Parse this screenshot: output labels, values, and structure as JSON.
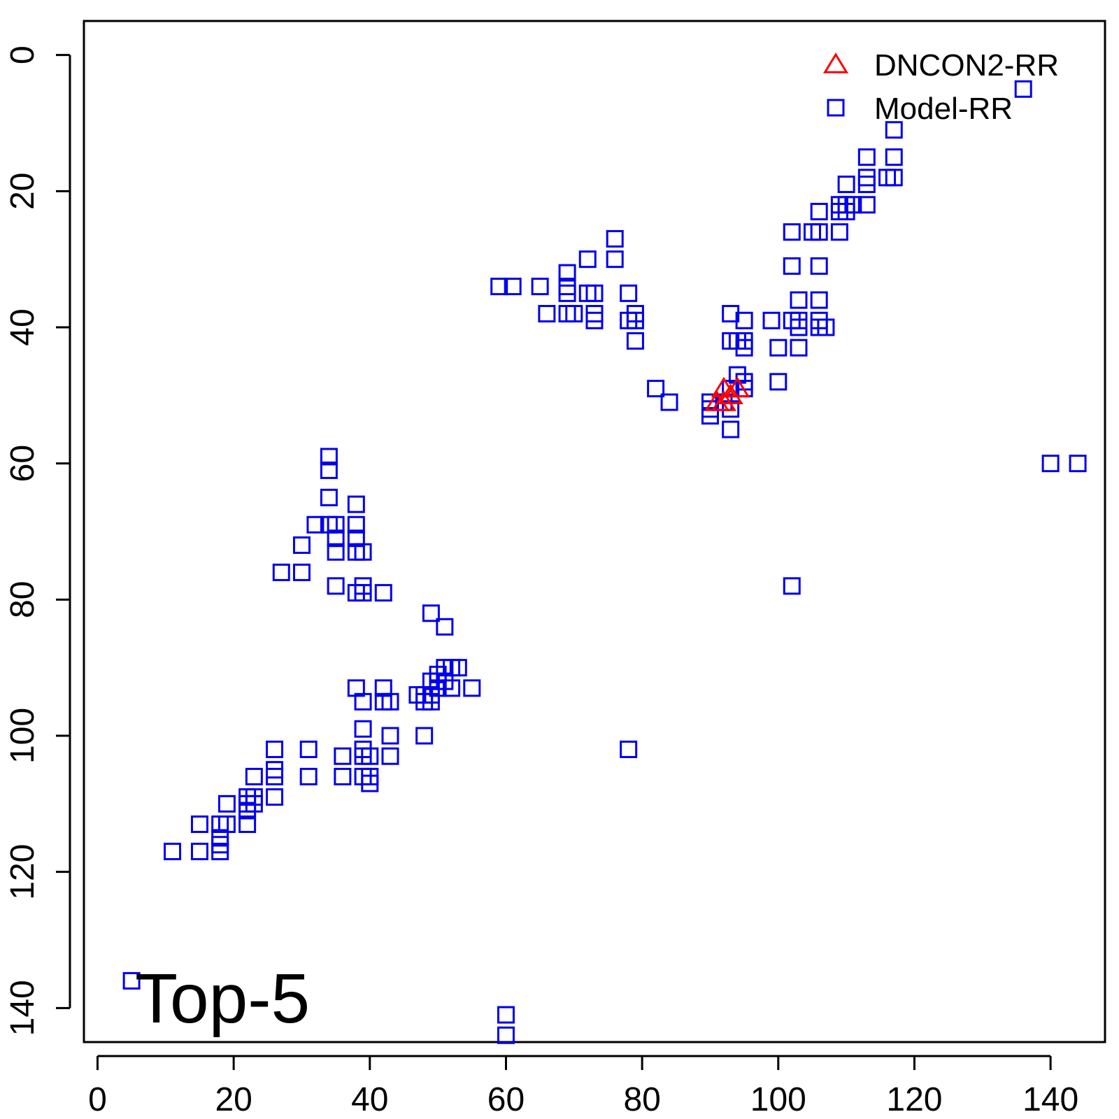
{
  "chart_data": {
    "type": "scatter",
    "title": "",
    "xlabel": "",
    "ylabel": "",
    "xlim": [
      -2,
      148
    ],
    "ylim": [
      145,
      -5
    ],
    "y_axis_reversed": true,
    "x_ticks": [
      0,
      20,
      40,
      60,
      80,
      100,
      120,
      140
    ],
    "y_ticks": [
      0,
      20,
      40,
      60,
      80,
      100,
      120,
      140
    ],
    "grid": false,
    "legend_position": "top-right",
    "annotation": "Top-5",
    "series": [
      {
        "name": "DNCON2-RR",
        "marker": "triangle",
        "color": "#ff0000",
        "points": [
          [
            92,
            49
          ],
          [
            94,
            49
          ],
          [
            93,
            50
          ],
          [
            92,
            51
          ],
          [
            91,
            51
          ]
        ]
      },
      {
        "name": "Model-RR",
        "marker": "square",
        "color": "#0000ee",
        "points": [
          [
            136,
            5
          ],
          [
            117,
            11
          ],
          [
            113,
            15
          ],
          [
            117,
            15
          ],
          [
            113,
            18
          ],
          [
            116,
            18
          ],
          [
            117,
            18
          ],
          [
            110,
            19
          ],
          [
            113,
            19
          ],
          [
            109,
            22
          ],
          [
            110,
            22
          ],
          [
            111,
            22
          ],
          [
            113,
            22
          ],
          [
            109,
            23
          ],
          [
            110,
            23
          ],
          [
            106,
            23
          ],
          [
            102,
            26
          ],
          [
            105,
            26
          ],
          [
            106,
            26
          ],
          [
            109,
            26
          ],
          [
            76,
            27
          ],
          [
            72,
            30
          ],
          [
            76,
            30
          ],
          [
            102,
            31
          ],
          [
            106,
            31
          ],
          [
            69,
            32
          ],
          [
            69,
            34
          ],
          [
            59,
            34
          ],
          [
            61,
            34
          ],
          [
            65,
            34
          ],
          [
            69,
            35
          ],
          [
            72,
            35
          ],
          [
            73,
            35
          ],
          [
            78,
            35
          ],
          [
            103,
            36
          ],
          [
            106,
            36
          ],
          [
            66,
            38
          ],
          [
            69,
            38
          ],
          [
            70,
            38
          ],
          [
            73,
            38
          ],
          [
            79,
            38
          ],
          [
            93,
            38
          ],
          [
            73,
            39
          ],
          [
            78,
            39
          ],
          [
            79,
            39
          ],
          [
            95,
            39
          ],
          [
            99,
            39
          ],
          [
            102,
            39
          ],
          [
            103,
            39
          ],
          [
            106,
            39
          ],
          [
            103,
            40
          ],
          [
            106,
            40
          ],
          [
            107,
            40
          ],
          [
            79,
            42
          ],
          [
            93,
            42
          ],
          [
            94,
            42
          ],
          [
            95,
            42
          ],
          [
            95,
            43
          ],
          [
            100,
            43
          ],
          [
            103,
            43
          ],
          [
            94,
            47
          ],
          [
            100,
            48
          ],
          [
            95,
            48
          ],
          [
            82,
            49
          ],
          [
            95,
            49
          ],
          [
            93,
            49
          ],
          [
            92,
            51
          ],
          [
            84,
            51
          ],
          [
            90,
            51
          ],
          [
            90,
            52
          ],
          [
            93,
            52
          ],
          [
            90,
            53
          ],
          [
            93,
            55
          ],
          [
            34,
            59
          ],
          [
            34,
            61
          ],
          [
            140,
            60
          ],
          [
            144,
            60
          ],
          [
            34,
            65
          ],
          [
            38,
            66
          ],
          [
            32,
            69
          ],
          [
            34,
            69
          ],
          [
            35,
            69
          ],
          [
            38,
            69
          ],
          [
            35,
            71
          ],
          [
            38,
            71
          ],
          [
            30,
            72
          ],
          [
            35,
            73
          ],
          [
            38,
            73
          ],
          [
            39,
            73
          ],
          [
            27,
            76
          ],
          [
            30,
            76
          ],
          [
            35,
            78
          ],
          [
            39,
            78
          ],
          [
            102,
            78
          ],
          [
            38,
            79
          ],
          [
            39,
            79
          ],
          [
            42,
            79
          ],
          [
            49,
            82
          ],
          [
            51,
            84
          ],
          [
            51,
            90
          ],
          [
            52,
            90
          ],
          [
            53,
            90
          ],
          [
            50,
            91
          ],
          [
            50,
            92
          ],
          [
            51,
            92
          ],
          [
            49,
            92
          ],
          [
            38,
            93
          ],
          [
            42,
            93
          ],
          [
            50,
            93
          ],
          [
            52,
            93
          ],
          [
            55,
            93
          ],
          [
            47,
            94
          ],
          [
            48,
            94
          ],
          [
            49,
            94
          ],
          [
            39,
            95
          ],
          [
            42,
            95
          ],
          [
            43,
            95
          ],
          [
            48,
            95
          ],
          [
            49,
            95
          ],
          [
            39,
            99
          ],
          [
            43,
            100
          ],
          [
            48,
            100
          ],
          [
            31,
            102
          ],
          [
            26,
            102
          ],
          [
            78,
            102
          ],
          [
            39,
            102
          ],
          [
            36,
            103
          ],
          [
            39,
            103
          ],
          [
            40,
            103
          ],
          [
            43,
            103
          ],
          [
            26,
            105
          ],
          [
            23,
            106
          ],
          [
            26,
            106
          ],
          [
            31,
            106
          ],
          [
            36,
            106
          ],
          [
            39,
            106
          ],
          [
            40,
            106
          ],
          [
            40,
            107
          ],
          [
            23,
            109
          ],
          [
            26,
            109
          ],
          [
            22,
            109
          ],
          [
            19,
            110
          ],
          [
            22,
            110
          ],
          [
            23,
            110
          ],
          [
            22,
            111
          ],
          [
            15,
            113
          ],
          [
            18,
            113
          ],
          [
            19,
            113
          ],
          [
            22,
            113
          ],
          [
            18,
            115
          ],
          [
            18,
            116
          ],
          [
            11,
            117
          ],
          [
            15,
            117
          ],
          [
            18,
            117
          ],
          [
            5,
            136
          ],
          [
            60,
            141
          ],
          [
            60,
            144
          ]
        ]
      }
    ]
  }
}
